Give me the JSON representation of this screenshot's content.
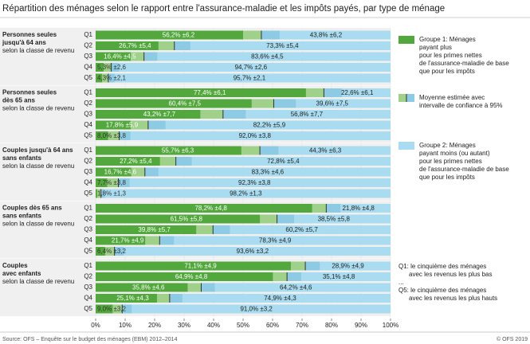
{
  "chart_data": {
    "type": "bar",
    "orientation": "horizontal",
    "stacked": true,
    "title": "Répartition des ménages selon le rapport entre l'assurance-maladie et les impôts payés, par type de ménage",
    "groups": [
      {
        "title": [
          "Personnes seules",
          "jusqu'à 64 ans"
        ],
        "subtitle": "selon la classe de revenu",
        "categories": [
          "Q1",
          "Q2",
          "Q3",
          "Q4",
          "Q5"
        ]
      },
      {
        "title": [
          "Personnes seules",
          "dès 65 ans"
        ],
        "subtitle": "selon la classe de revenu",
        "categories": [
          "Q1",
          "Q2",
          "Q3",
          "Q4",
          "Q5"
        ]
      },
      {
        "title": [
          "Couples jusqu'à 64 ans",
          "sans enfants"
        ],
        "subtitle": "selon la classe de revenu",
        "categories": [
          "Q1",
          "Q2",
          "Q3",
          "Q4",
          "Q5"
        ]
      },
      {
        "title": [
          "Couples dès 65 ans",
          "sans enfants"
        ],
        "subtitle": "selon la classe de revenu",
        "categories": [
          "Q1",
          "Q2",
          "Q3",
          "Q4",
          "Q5"
        ]
      },
      {
        "title": [
          "Couples",
          "avec enfants"
        ],
        "subtitle": "selon la classe de revenu",
        "categories": [
          "Q1",
          "Q2",
          "Q3",
          "Q4",
          "Q5"
        ]
      }
    ],
    "series": [
      {
        "name": [
          "Groupe 1: Ménages",
          "payant plus",
          "pour les primes nettes",
          "de l'assurance-maladie de base",
          "que pour les impôts"
        ],
        "color": "#52a83c",
        "ci_color": "#9fd18a",
        "values": [
          56.2,
          26.7,
          16.4,
          5.3,
          4.3,
          77.4,
          60.4,
          43.2,
          17.8,
          8.0,
          55.7,
          27.2,
          16.7,
          7.7,
          1.8,
          78.2,
          61.5,
          39.8,
          21.7,
          6.4,
          71.1,
          64.9,
          35.8,
          25.1,
          9.0
        ],
        "errors": [
          6.2,
          5.4,
          4.5,
          2.6,
          2.1,
          6.1,
          7.5,
          7.7,
          5.9,
          3.8,
          6.3,
          5.4,
          4.6,
          3.8,
          1.3,
          4.8,
          5.8,
          5.7,
          4.9,
          3.2,
          4.9,
          4.8,
          4.6,
          4.3,
          3.2
        ],
        "value_labels": [
          "56,2% ±6,2",
          "26,7% ±5,4",
          "16,4% ±4,5",
          "5,3% ±2,6",
          "4,3% ±2,1",
          "77,4% ±6,1",
          "60,4% ±7,5",
          "43,2% ±7,7",
          "17,8% ±5,9",
          "8,0% ±3,8",
          "55,7% ±6,3",
          "27,2% ±5,4",
          "16,7% ±4,6",
          "7,7% ±3,8",
          "1,8% ±1,3",
          "78,2% ±4,8",
          "61,5% ±5,8",
          "39,8% ±5,7",
          "21,7% ±4,9",
          "6,4% ±3,2",
          "71,1% ±4,9",
          "64,9% ±4,8",
          "35,8% ±4,6",
          "25,1% ±4,3",
          "9,0% ±3,2"
        ]
      },
      {
        "name": [
          "Groupe 2: Ménages",
          "payant moins (ou autant)",
          "pour les primes nettes",
          "de l'assurance-maladie de base",
          "que pour les impôts"
        ],
        "color": "#a9dcf0",
        "ci_color": "#8ccbe3",
        "values": [
          43.8,
          73.3,
          83.6,
          94.7,
          95.7,
          22.6,
          39.6,
          56.8,
          82.2,
          92.0,
          44.3,
          72.8,
          83.3,
          92.3,
          98.2,
          21.8,
          38.5,
          60.2,
          78.3,
          93.6,
          28.9,
          35.1,
          64.2,
          74.9,
          91.0
        ],
        "errors": [
          6.2,
          5.4,
          4.5,
          2.6,
          2.1,
          6.1,
          7.5,
          7.7,
          5.9,
          3.8,
          6.3,
          5.4,
          4.6,
          3.8,
          1.3,
          4.8,
          5.8,
          5.7,
          4.9,
          3.2,
          4.9,
          4.8,
          4.6,
          4.3,
          3.2
        ],
        "value_labels": [
          "43,8% ±6,2",
          "73,3% ±5,4",
          "83,6% ±4,5",
          "94,7% ±2,6",
          "95,7% ±2,1",
          "22,6% ±6,1",
          "39,6% ±7,5",
          "56,8% ±7,7",
          "82,2% ±5,9",
          "92,0% ±3,8",
          "44,3% ±6,3",
          "72,8% ±5,4",
          "83,3% ±4,6",
          "92,3% ±3,8",
          "98,2% ±1,3",
          "21,8% ±4,8",
          "38,5% ±5,8",
          "60,2% ±5,7",
          "78,3% ±4,9",
          "93,6% ±3,2",
          "28,9% ±4,9",
          "35,1% ±4,8",
          "64,2% ±4,6",
          "74,9% ±4,3",
          "91,0% ±3,2"
        ]
      }
    ],
    "ci_legend": [
      "Moyenne estimée avec",
      "intervalle de confiance à 95%"
    ],
    "notes": [
      "Q1: le cinquième des ménages",
      "avec les revenus les plus bas",
      "...",
      "Q5: le cinquième des ménages",
      "avec les revenus les plus hauts"
    ],
    "xlim": [
      0,
      100
    ],
    "xticks": [
      {
        "value": 0,
        "label": "0%"
      },
      {
        "value": 10,
        "label": "10%"
      },
      {
        "value": 20,
        "label": "20%"
      },
      {
        "value": 30,
        "label": "30%"
      },
      {
        "value": 40,
        "label": "40%"
      },
      {
        "value": 50,
        "label": "50%"
      },
      {
        "value": 60,
        "label": "60%"
      },
      {
        "value": 70,
        "label": "70%"
      },
      {
        "value": 80,
        "label": "80%"
      },
      {
        "value": 90,
        "label": "90%"
      },
      {
        "value": 100,
        "label": "100%"
      }
    ],
    "grid": true,
    "source": "Source: OFS – Enquête sur le budget des ménages (EBM) 2012–2014",
    "copyright": "© OFS 2019"
  }
}
